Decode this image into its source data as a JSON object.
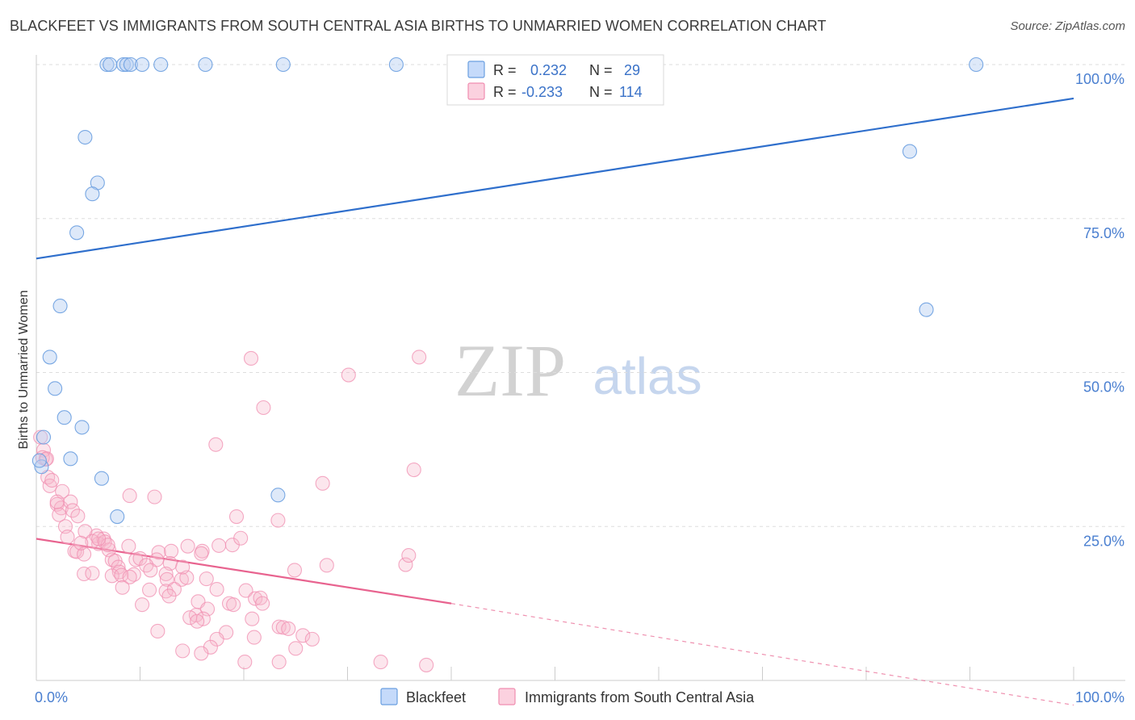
{
  "title": "BLACKFEET VS IMMIGRANTS FROM SOUTH CENTRAL ASIA BIRTHS TO UNMARRIED WOMEN CORRELATION CHART",
  "source": "Source: ZipAtlas.com",
  "watermark": {
    "zip": "ZIP",
    "atlas": "atlas"
  },
  "colors": {
    "blue": "#6a9fe0",
    "blue_line": "#2f6fcc",
    "pink": "#f08db0",
    "pink_line": "#e8638f",
    "axis_text": "#4a7fd0",
    "grid": "#dddddd"
  },
  "chart_data": {
    "type": "scatter",
    "title": "BLACKFEET VS IMMIGRANTS FROM SOUTH CENTRAL ASIA BIRTHS TO UNMARRIED WOMEN CORRELATION CHART",
    "xlabel": "",
    "ylabel": "Births to Unmarried Women",
    "xlim": [
      0,
      100
    ],
    "ylim": [
      0,
      100
    ],
    "x_tick_labels": [
      "0.0%",
      "100.0%"
    ],
    "y_tick_labels": [
      "25.0%",
      "50.0%",
      "75.0%",
      "100.0%"
    ],
    "y_ticks": [
      25,
      50,
      75,
      100
    ],
    "grid": true,
    "legend": {
      "placement": "top-center",
      "entries": [
        {
          "r_label": "R =",
          "r_value": "0.232",
          "n_label": "N =",
          "n_value": "29"
        },
        {
          "r_label": "R =",
          "r_value": "-0.233",
          "n_label": "N =",
          "n_value": "114"
        }
      ]
    },
    "bottom_legend": [
      "Blackfeet",
      "Immigrants from South Central Asia"
    ],
    "series": [
      {
        "name": "Blackfeet",
        "color": "#6a9fe0",
        "trend": {
          "x": [
            0,
            100
          ],
          "y": [
            68.5,
            94.5
          ],
          "dashed_from": null
        },
        "points": [
          [
            6.8,
            100
          ],
          [
            7.1,
            100
          ],
          [
            8.4,
            100
          ],
          [
            8.7,
            100
          ],
          [
            9.1,
            100
          ],
          [
            10.2,
            100
          ],
          [
            12.0,
            100
          ],
          [
            16.3,
            100
          ],
          [
            23.8,
            100
          ],
          [
            34.7,
            100
          ],
          [
            90.6,
            100
          ],
          [
            4.7,
            88.2
          ],
          [
            5.9,
            80.8
          ],
          [
            5.4,
            79.0
          ],
          [
            3.9,
            72.7
          ],
          [
            84.2,
            85.9
          ],
          [
            2.3,
            60.8
          ],
          [
            85.8,
            60.2
          ],
          [
            1.3,
            52.5
          ],
          [
            1.8,
            47.4
          ],
          [
            2.7,
            42.7
          ],
          [
            4.4,
            41.1
          ],
          [
            0.7,
            39.5
          ],
          [
            3.3,
            36.0
          ],
          [
            0.5,
            34.7
          ],
          [
            6.3,
            32.8
          ],
          [
            7.8,
            26.6
          ],
          [
            23.3,
            30.1
          ],
          [
            0.3,
            35.7
          ]
        ]
      },
      {
        "name": "Immigrants from South Central Asia",
        "color": "#f08db0",
        "trend": {
          "x": [
            0,
            40
          ],
          "y": [
            23.0,
            12.5
          ],
          "dashed_to": [
            100,
            -4.0
          ]
        },
        "points": [
          [
            0.4,
            39.5
          ],
          [
            0.7,
            37.4
          ],
          [
            0.9,
            35.9
          ],
          [
            0.6,
            36.2
          ],
          [
            1.1,
            33.0
          ],
          [
            1.3,
            31.6
          ],
          [
            1.5,
            32.5
          ],
          [
            2.5,
            30.7
          ],
          [
            2.0,
            28.6
          ],
          [
            2.4,
            28.0
          ],
          [
            3.3,
            29.0
          ],
          [
            3.5,
            27.6
          ],
          [
            2.2,
            26.9
          ],
          [
            4.0,
            26.7
          ],
          [
            2.8,
            25.0
          ],
          [
            3.0,
            23.3
          ],
          [
            5.8,
            23.5
          ],
          [
            6.0,
            22.2
          ],
          [
            4.7,
            24.2
          ],
          [
            6.5,
            23.0
          ],
          [
            5.4,
            22.6
          ],
          [
            6.6,
            22.5
          ],
          [
            3.7,
            21.0
          ],
          [
            3.9,
            20.9
          ],
          [
            4.6,
            20.5
          ],
          [
            8.9,
            21.8
          ],
          [
            7.0,
            21.2
          ],
          [
            6.9,
            22.0
          ],
          [
            7.3,
            19.6
          ],
          [
            7.6,
            19.4
          ],
          [
            9.6,
            19.6
          ],
          [
            10.0,
            19.8
          ],
          [
            11.8,
            20.8
          ],
          [
            13.0,
            21.0
          ],
          [
            14.6,
            21.8
          ],
          [
            16.0,
            21.0
          ],
          [
            18.9,
            22.0
          ],
          [
            19.7,
            23.1
          ],
          [
            11.6,
            19.6
          ],
          [
            12.9,
            19.0
          ],
          [
            7.9,
            18.4
          ],
          [
            8.0,
            17.6
          ],
          [
            9.4,
            17.2
          ],
          [
            10.6,
            18.7
          ],
          [
            11.0,
            17.9
          ],
          [
            4.6,
            17.3
          ],
          [
            5.4,
            17.4
          ],
          [
            7.3,
            17.0
          ],
          [
            8.2,
            17.1
          ],
          [
            9.0,
            16.8
          ],
          [
            12.5,
            17.3
          ],
          [
            12.6,
            16.4
          ],
          [
            14.0,
            16.4
          ],
          [
            14.5,
            16.7
          ],
          [
            16.4,
            16.5
          ],
          [
            14.1,
            18.4
          ],
          [
            8.3,
            15.1
          ],
          [
            10.9,
            14.7
          ],
          [
            12.5,
            14.5
          ],
          [
            13.3,
            14.8
          ],
          [
            10.2,
            12.3
          ],
          [
            12.8,
            13.7
          ],
          [
            15.6,
            12.8
          ],
          [
            17.4,
            14.8
          ],
          [
            20.2,
            14.6
          ],
          [
            21.1,
            13.3
          ],
          [
            21.6,
            13.4
          ],
          [
            18.6,
            12.5
          ],
          [
            16.5,
            11.6
          ],
          [
            15.4,
            10.6
          ],
          [
            14.8,
            10.2
          ],
          [
            16.1,
            10.0
          ],
          [
            15.5,
            9.6
          ],
          [
            20.8,
            10.0
          ],
          [
            23.4,
            8.7
          ],
          [
            23.8,
            8.6
          ],
          [
            24.3,
            8.4
          ],
          [
            25.7,
            7.3
          ],
          [
            18.3,
            7.8
          ],
          [
            17.4,
            6.7
          ],
          [
            11.7,
            8.0
          ],
          [
            16.8,
            5.4
          ],
          [
            14.1,
            4.8
          ],
          [
            15.9,
            4.4
          ],
          [
            26.6,
            6.7
          ],
          [
            25.0,
            5.2
          ],
          [
            21.0,
            7.0
          ],
          [
            20.1,
            3.0
          ],
          [
            23.4,
            3.0
          ],
          [
            33.2,
            3.0
          ],
          [
            37.6,
            2.5
          ],
          [
            20.7,
            52.3
          ],
          [
            36.9,
            52.5
          ],
          [
            30.1,
            49.6
          ],
          [
            21.9,
            44.3
          ],
          [
            17.3,
            38.3
          ],
          [
            36.4,
            34.2
          ],
          [
            27.6,
            32.0
          ],
          [
            9.0,
            30.0
          ],
          [
            11.4,
            29.8
          ],
          [
            19.3,
            26.6
          ],
          [
            23.3,
            26.0
          ],
          [
            17.6,
            21.9
          ],
          [
            21.8,
            12.5
          ],
          [
            19.0,
            12.3
          ],
          [
            24.9,
            17.9
          ],
          [
            28.0,
            18.7
          ],
          [
            35.6,
            18.8
          ],
          [
            35.9,
            20.3
          ],
          [
            15.9,
            20.6
          ],
          [
            4.3,
            22.3
          ],
          [
            6.0,
            23.0
          ],
          [
            2.0,
            29.0
          ],
          [
            1.0,
            36.0
          ]
        ]
      }
    ]
  }
}
